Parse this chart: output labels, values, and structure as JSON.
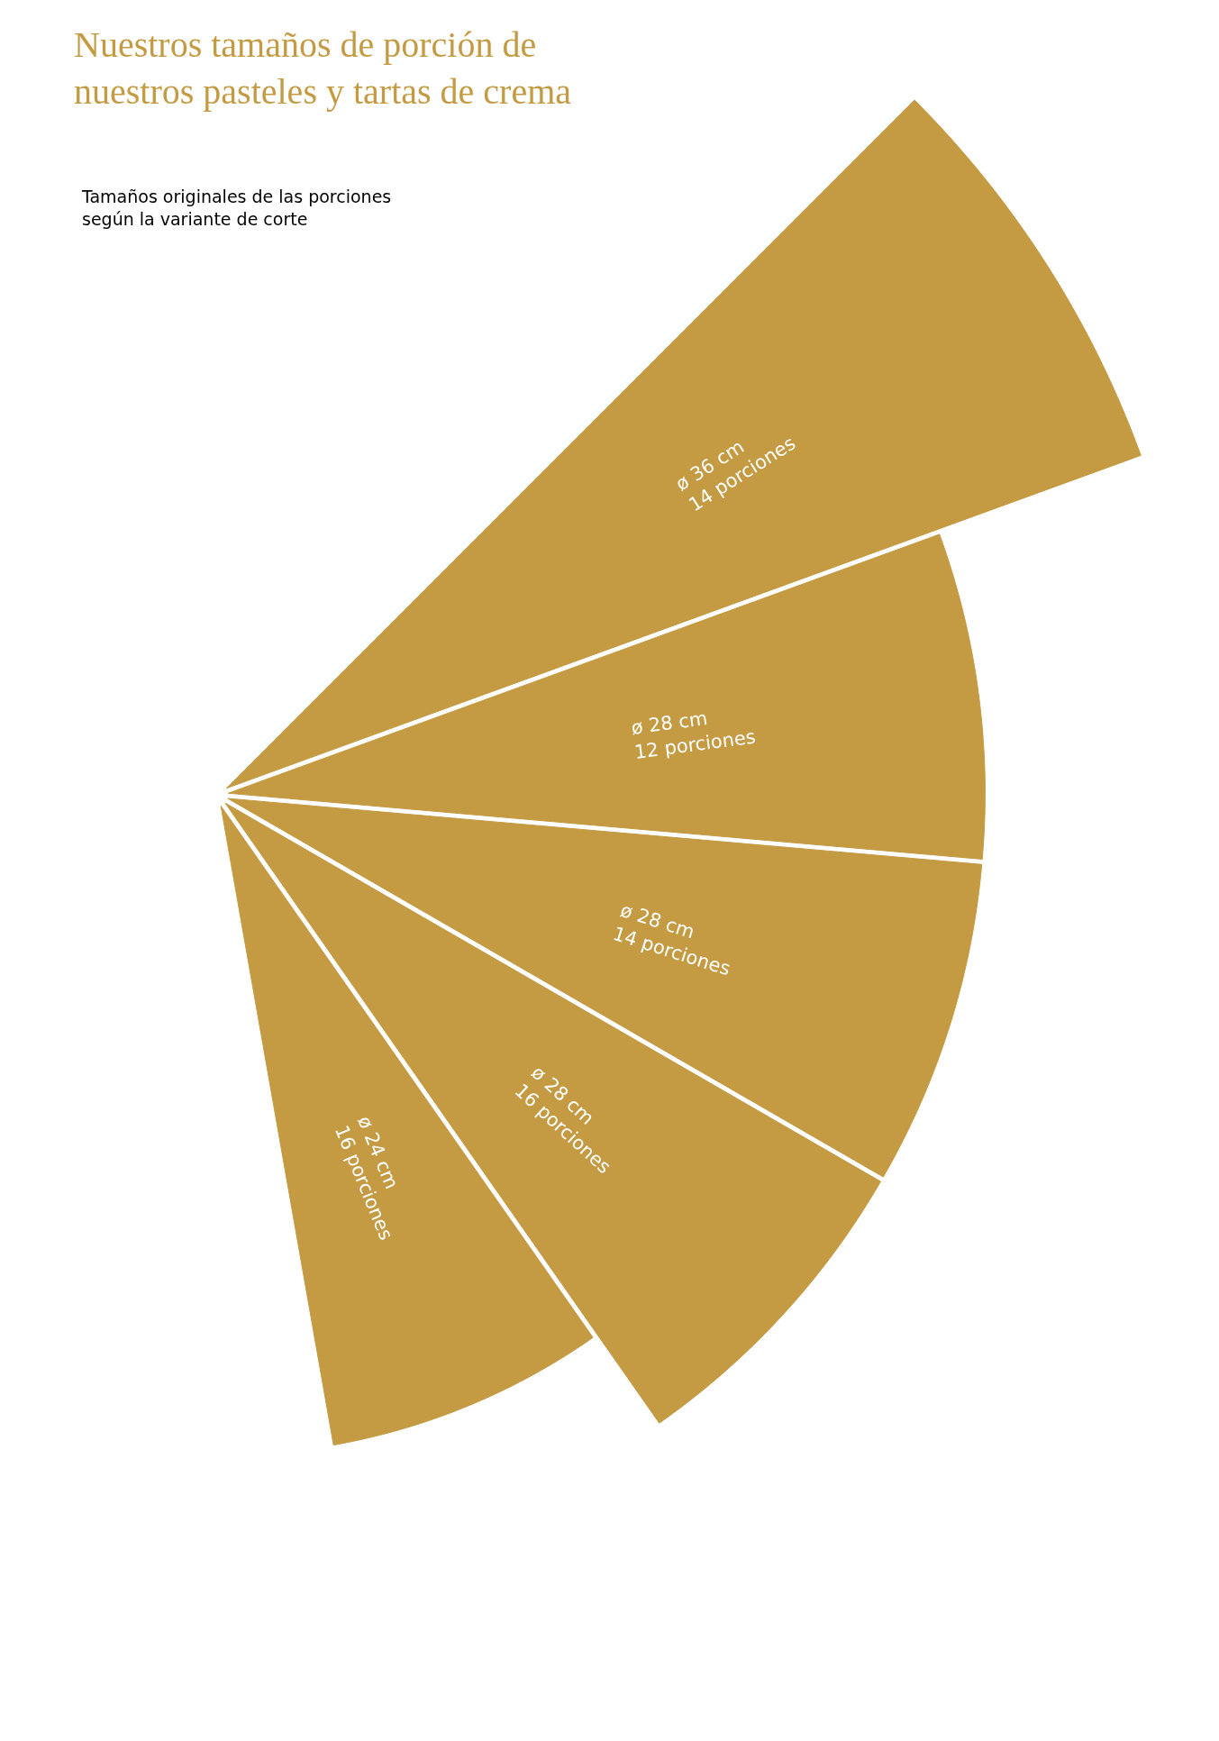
{
  "chart_data": {
    "type": "other",
    "title": "Nuestros tamaños de porción de\nnuestros pasteles y tartas de crema",
    "subtitle": "Tamaños originales de las porciones\nsegún la variante de corte",
    "values": [
      36,
      28,
      28,
      28,
      24
    ],
    "value_labels": [
      "ø 36 cm\n14 porciones",
      "ø 28 cm\n12 porciones",
      "ø 28 cm\n14 porciones",
      "ø 28 cm\n16 porciones",
      "ø 24 cm\n16 porciones"
    ],
    "color": "#c49a42"
  }
}
